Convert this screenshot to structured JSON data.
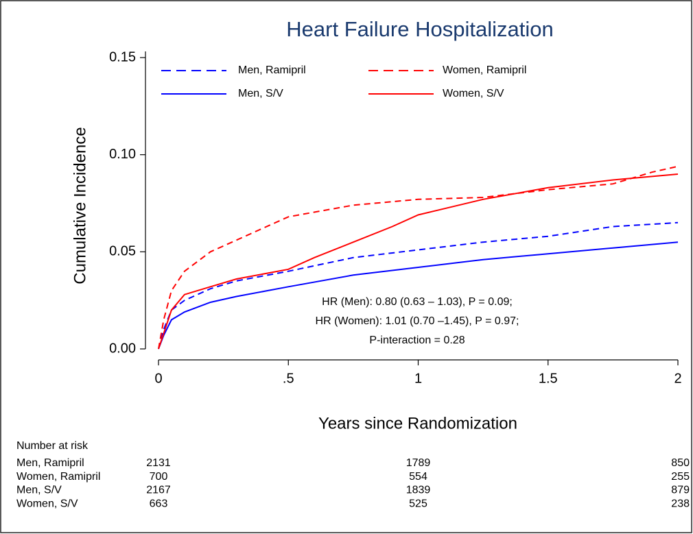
{
  "chart_data": {
    "type": "line",
    "title": "Heart Failure Hospitalization",
    "x_label": "Years since Randomization",
    "y_label": "Cumulative Incidence",
    "xlim": [
      0,
      2
    ],
    "ylim": [
      0,
      0.15
    ],
    "xticks": [
      0,
      {
        "value": 0.5,
        "label": ".5"
      },
      1,
      1.5,
      2
    ],
    "yticks": [
      {
        "value": 0,
        "label": "0.00"
      },
      {
        "value": 0.05,
        "label": "0.05"
      },
      {
        "value": 0.1,
        "label": "0.10"
      },
      {
        "value": 0.15,
        "label": "0.15"
      }
    ],
    "series": [
      {
        "name": "Men, Ramipril",
        "color": "#0000ff",
        "dashed": true,
        "x": [
          0,
          0.02,
          0.05,
          0.1,
          0.2,
          0.3,
          0.5,
          0.75,
          1,
          1.25,
          1.5,
          1.75,
          2
        ],
        "values": [
          0,
          0.01,
          0.02,
          0.025,
          0.031,
          0.035,
          0.04,
          0.047,
          0.051,
          0.055,
          0.058,
          0.063,
          0.065
        ]
      },
      {
        "name": "Women, Ramipril",
        "color": "#ff0000",
        "dashed": true,
        "x": [
          0,
          0.02,
          0.05,
          0.1,
          0.2,
          0.3,
          0.4,
          0.5,
          0.75,
          1,
          1.25,
          1.5,
          1.75,
          1.9,
          2
        ],
        "values": [
          0,
          0.015,
          0.03,
          0.04,
          0.05,
          0.056,
          0.062,
          0.068,
          0.074,
          0.077,
          0.078,
          0.082,
          0.085,
          0.091,
          0.094
        ]
      },
      {
        "name": "Men, S/V",
        "color": "#0000ff",
        "dashed": false,
        "x": [
          0,
          0.02,
          0.05,
          0.1,
          0.2,
          0.3,
          0.5,
          0.75,
          1,
          1.25,
          1.5,
          1.75,
          2
        ],
        "values": [
          0,
          0.007,
          0.015,
          0.019,
          0.024,
          0.027,
          0.032,
          0.038,
          0.042,
          0.046,
          0.049,
          0.052,
          0.055
        ]
      },
      {
        "name": "Women, S/V",
        "color": "#ff0000",
        "dashed": false,
        "x": [
          0,
          0.02,
          0.05,
          0.1,
          0.2,
          0.3,
          0.5,
          0.6,
          0.75,
          0.9,
          1,
          1.25,
          1.5,
          1.75,
          2
        ],
        "values": [
          0,
          0.008,
          0.02,
          0.028,
          0.032,
          0.036,
          0.041,
          0.047,
          0.055,
          0.063,
          0.069,
          0.077,
          0.083,
          0.087,
          0.09
        ]
      }
    ],
    "annotations": [
      "HR (Men): 0.80 (0.63 – 1.03), P = 0.09;",
      "HR (Women): 1.01 (0.70 –1.45), P = 0.97;",
      "P-interaction = 0.28"
    ],
    "risk_table": {
      "title": "Number at risk",
      "rows": [
        {
          "label": "Men, Ramipril",
          "values": [
            2131,
            1789,
            850
          ]
        },
        {
          "label": "Women, Ramipril",
          "values": [
            700,
            554,
            255
          ]
        },
        {
          "label": "Men, S/V",
          "values": [
            2167,
            1839,
            879
          ]
        },
        {
          "label": "Women, S/V",
          "values": [
            663,
            525,
            238
          ]
        }
      ]
    }
  }
}
